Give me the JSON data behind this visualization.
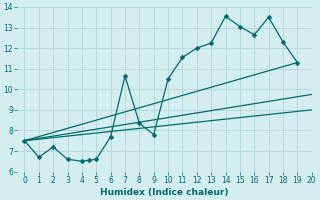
{
  "xlabel": "Humidex (Indice chaleur)",
  "xlim": [
    -0.5,
    20
  ],
  "ylim": [
    6,
    14
  ],
  "xticks": [
    0,
    1,
    2,
    3,
    4,
    5,
    6,
    7,
    8,
    9,
    10,
    11,
    12,
    13,
    14,
    15,
    16,
    17,
    18,
    19,
    20
  ],
  "yticks": [
    6,
    7,
    8,
    9,
    10,
    11,
    12,
    13,
    14
  ],
  "bg_color": "#d4edee",
  "grid_color": "#b8d8d8",
  "line_color": "#006b6b",
  "main_series": {
    "x": [
      0,
      1,
      2,
      3,
      4,
      4.5,
      5,
      6,
      7,
      8,
      9,
      10,
      11,
      12,
      13,
      14,
      15,
      16,
      17,
      18,
      19
    ],
    "y": [
      7.5,
      6.7,
      7.2,
      6.6,
      6.5,
      6.55,
      6.6,
      7.7,
      10.65,
      8.35,
      7.8,
      10.5,
      11.55,
      12.0,
      12.25,
      13.55,
      13.05,
      12.65,
      13.5,
      12.3,
      11.3
    ]
  },
  "straight_lines": [
    {
      "x": [
        0,
        20
      ],
      "y": [
        7.5,
        9.75
      ]
    },
    {
      "x": [
        0,
        20
      ],
      "y": [
        7.5,
        9.0
      ]
    },
    {
      "x": [
        0,
        19
      ],
      "y": [
        7.5,
        11.3
      ]
    }
  ]
}
